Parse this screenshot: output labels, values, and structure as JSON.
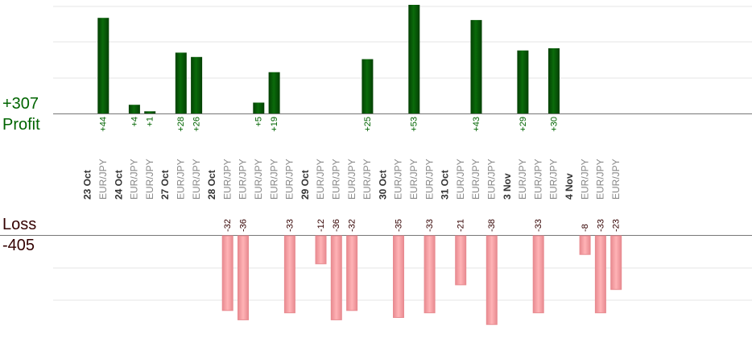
{
  "profit_total": "+307",
  "profit_label": "Profit",
  "loss_label": "Loss",
  "loss_total": "-405",
  "colors": {
    "profit_bar": "#0a6b0a",
    "profit_bar_dark": "#044004",
    "profit_text": "#006400",
    "loss_bar": "#ffb3b6",
    "loss_bar_edge": "#e88a90",
    "loss_text": "#330000",
    "grid": "#e6e6e6",
    "axis": "#777777",
    "instrument_text": "#888888",
    "date_text": "#333333"
  },
  "chart_data": {
    "type": "bar",
    "profit_scale_max": 50,
    "loss_scale_max": 40,
    "dates": [
      {
        "label": "23 Oct",
        "trades": [
          {
            "pair": "EUR/JPY",
            "result": "+44"
          }
        ]
      },
      {
        "label": "24 Oct",
        "trades": [
          {
            "pair": "EUR/JPY",
            "result": "+4"
          },
          {
            "pair": "EUR/JPY",
            "result": "+1"
          }
        ]
      },
      {
        "label": "27 Oct",
        "trades": [
          {
            "pair": "EUR/JPY",
            "result": "+28"
          },
          {
            "pair": "EUR/JPY",
            "result": "+26"
          }
        ]
      },
      {
        "label": "28 Oct",
        "trades": [
          {
            "pair": "EUR/JPY",
            "result": "-32"
          },
          {
            "pair": "EUR/JPY",
            "result": "-36"
          },
          {
            "pair": "EUR/JPY",
            "result": "+5"
          },
          {
            "pair": "EUR/JPY",
            "result": "+19"
          },
          {
            "pair": "EUR/JPY",
            "result": "-33"
          }
        ]
      },
      {
        "label": "29 Oct",
        "trades": [
          {
            "pair": "EUR/JPY",
            "result": "-12"
          },
          {
            "pair": "EUR/JPY",
            "result": "-36"
          },
          {
            "pair": "EUR/JPY",
            "result": "-32"
          },
          {
            "pair": "EUR/JPY",
            "result": "+25"
          }
        ]
      },
      {
        "label": "30 Oct",
        "trades": [
          {
            "pair": "EUR/JPY",
            "result": "-35"
          },
          {
            "pair": "EUR/JPY",
            "result": "+53"
          },
          {
            "pair": "EUR/JPY",
            "result": "-33"
          }
        ]
      },
      {
        "label": "31 Oct",
        "trades": [
          {
            "pair": "EUR/JPY",
            "result": "-21"
          },
          {
            "pair": "EUR/JPY",
            "result": "+43"
          },
          {
            "pair": "EUR/JPY",
            "result": "-38"
          }
        ]
      },
      {
        "label": "3 Nov",
        "trades": [
          {
            "pair": "EUR/JPY",
            "result": "+29"
          },
          {
            "pair": "EUR/JPY",
            "result": "-33"
          },
          {
            "pair": "EUR/JPY",
            "result": "+30"
          }
        ]
      },
      {
        "label": "4 Nov",
        "trades": [
          {
            "pair": "EUR/JPY",
            "result": "-8"
          },
          {
            "pair": "EUR/JPY",
            "result": "-33"
          },
          {
            "pair": "EUR/JPY",
            "result": "-23"
          }
        ]
      }
    ]
  }
}
